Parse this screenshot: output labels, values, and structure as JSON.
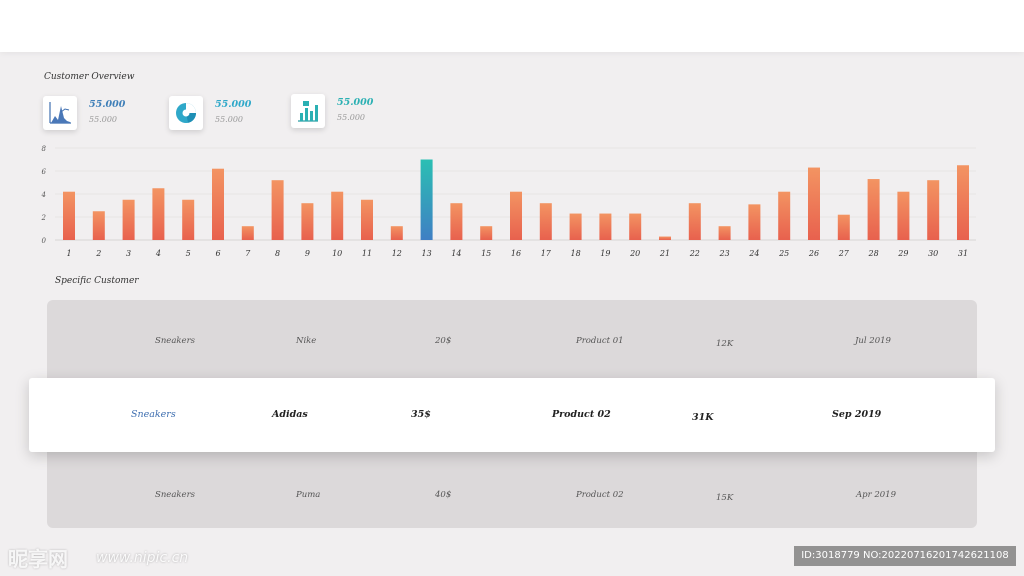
{
  "overview": {
    "title": "Customer Overview"
  },
  "stats": [
    {
      "icon": "area-chart-icon",
      "value": "55.000",
      "sub": "55.000",
      "color": "#3f7fb8"
    },
    {
      "icon": "pie-chart-icon",
      "value": "55.000",
      "sub": "55.000",
      "color": "#2fa8c9"
    },
    {
      "icon": "bar-chart-icon",
      "value": "55.000",
      "sub": "55.000",
      "color": "#2bb0b3"
    }
  ],
  "chart_data": {
    "type": "bar",
    "categories": [
      "1",
      "2",
      "3",
      "4",
      "5",
      "6",
      "7",
      "8",
      "9",
      "10",
      "11",
      "12",
      "13",
      "14",
      "15",
      "16",
      "17",
      "18",
      "19",
      "20",
      "21",
      "22",
      "23",
      "24",
      "25",
      "26",
      "27",
      "28",
      "29",
      "30",
      "31"
    ],
    "values": [
      4.2,
      2.5,
      3.5,
      4.5,
      3.5,
      6.2,
      1.2,
      5.2,
      3.2,
      4.2,
      3.5,
      1.2,
      7.0,
      3.2,
      1.2,
      4.2,
      3.2,
      2.3,
      2.3,
      2.3,
      0.3,
      3.2,
      1.2,
      3.1,
      4.2,
      6.3,
      2.2,
      5.3,
      4.2,
      5.2,
      6.5
    ],
    "highlight_index": 12,
    "yticks": [
      "0",
      "2",
      "4",
      "6",
      "8"
    ],
    "ylim": [
      0,
      8
    ],
    "grid": true,
    "colors": {
      "bar": "#f08a5d",
      "bar_dark": "#e85f4f",
      "highlight_top": "#2bbfb3",
      "highlight_bottom": "#3f7fc4"
    }
  },
  "specific": {
    "title": "Specific Customer"
  },
  "rows": [
    {
      "category": "Sneakers",
      "brand": "Nike",
      "price": "20$",
      "product": "Product 01",
      "volume": "12K",
      "date": "Jul 2019"
    },
    {
      "category": "Sneakers",
      "brand": "Adidas",
      "price": "35$",
      "product": "Product 02",
      "volume": "31K",
      "date": "Sep 2019"
    },
    {
      "category": "Sneakers",
      "brand": "Puma",
      "price": "40$",
      "product": "Product 02",
      "volume": "15K",
      "date": "Apr 2019"
    }
  ],
  "watermark": {
    "logo": "昵享网",
    "url": "www.nipic.cn",
    "id": "ID:3018779 NO:20220716201742621108"
  }
}
